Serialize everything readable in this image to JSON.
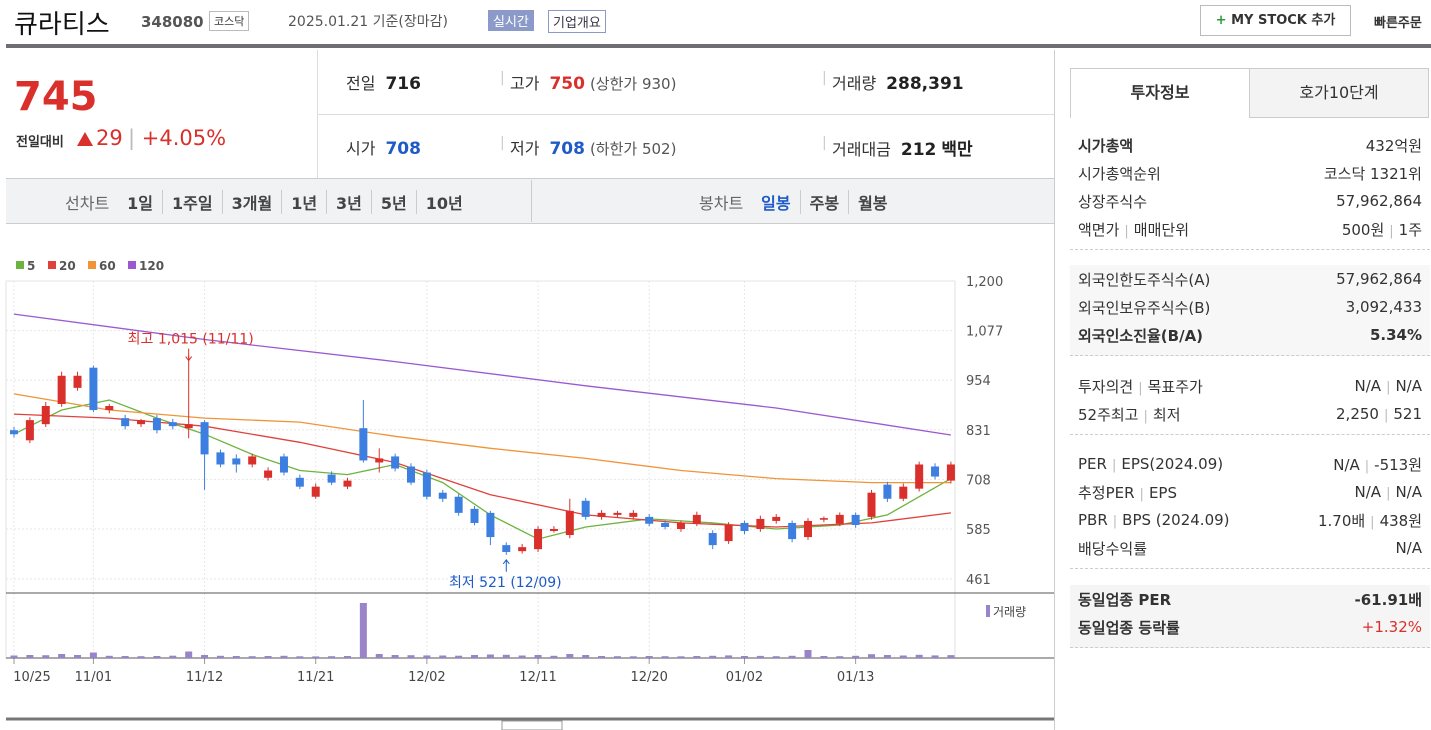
{
  "header": {
    "name": "큐라티스",
    "code": "348080",
    "market": "코스닥",
    "date_note": "2025.01.21 기준(장마감)",
    "realtime": "실시간",
    "company_info": "기업개요",
    "mystock": "MY STOCK 추가",
    "quick_order": "빠른주문"
  },
  "price": {
    "current": "745",
    "change_label": "전일대비",
    "change": "29",
    "change_pct": "+4.05%",
    "items": [
      {
        "label": "전일",
        "value": "716"
      },
      {
        "label": "고가",
        "value": "750",
        "extra": "(상한가 930)"
      },
      {
        "label": "거래량",
        "value": "288,391"
      },
      {
        "label": "시가",
        "value": "708"
      },
      {
        "label": "저가",
        "value": "708",
        "extra": "(하한가 502)"
      },
      {
        "label": "거래대금",
        "value": "212",
        "extra": "백만"
      }
    ]
  },
  "periods": {
    "line_label": "선차트",
    "line": [
      "1일",
      "1주일",
      "3개월",
      "1년",
      "3년",
      "5년",
      "10년"
    ],
    "candle_label": "봉차트",
    "candle": [
      "일봉",
      "주봉",
      "월봉"
    ]
  },
  "chart": {
    "type": "candlestick",
    "ylim": [
      461,
      1200
    ],
    "yticks": [
      {
        "value": 1200,
        "label": "1,200"
      },
      {
        "value": 1077,
        "label": "1,077"
      },
      954,
      831,
      708,
      585,
      461
    ],
    "xticks": [
      {
        "value": 0,
        "label": "10/25"
      },
      {
        "value": 5,
        "label": "11/01"
      },
      {
        "value": 12,
        "label": "11/12"
      },
      {
        "value": 19,
        "label": "11/21"
      },
      {
        "value": 26,
        "label": "12/02"
      },
      {
        "value": 33,
        "label": "12/11"
      },
      {
        "value": 40,
        "label": "12/20"
      },
      {
        "value": 46,
        "label": "01/02"
      },
      {
        "value": 53,
        "label": "01/13"
      }
    ],
    "up_color": "#d9302b",
    "down_color": "#3c7fe0",
    "open": [
      830,
      805,
      845,
      895,
      935,
      985,
      880,
      860,
      845,
      860,
      850,
      835,
      850,
      775,
      760,
      745,
      712,
      765,
      712,
      665,
      720,
      690,
      835,
      750,
      765,
      740,
      725,
      675,
      665,
      635,
      625,
      545,
      530,
      535,
      580,
      570,
      655,
      615,
      620,
      615,
      615,
      600,
      585,
      598,
      575,
      555,
      600,
      585,
      605,
      600,
      565,
      608,
      598,
      620,
      615,
      695,
      660,
      685,
      740,
      705
    ],
    "high": [
      838,
      862,
      900,
      975,
      975,
      990,
      895,
      868,
      858,
      868,
      858,
      1015,
      855,
      782,
      770,
      772,
      738,
      772,
      720,
      698,
      728,
      712,
      905,
      785,
      772,
      748,
      732,
      682,
      672,
      642,
      630,
      552,
      548,
      592,
      592,
      660,
      662,
      632,
      630,
      632,
      622,
      606,
      606,
      628,
      582,
      602,
      606,
      618,
      622,
      606,
      612,
      616,
      626,
      626,
      682,
      702,
      698,
      752,
      748,
      752
    ],
    "low": [
      812,
      798,
      838,
      888,
      928,
      875,
      872,
      832,
      838,
      822,
      832,
      810,
      682,
      738,
      725,
      738,
      705,
      718,
      684,
      660,
      694,
      684,
      750,
      725,
      728,
      694,
      658,
      652,
      618,
      594,
      545,
      521,
      524,
      528,
      576,
      562,
      608,
      608,
      614,
      608,
      592,
      584,
      578,
      592,
      535,
      548,
      572,
      578,
      598,
      552,
      558,
      602,
      592,
      588,
      608,
      652,
      654,
      678,
      708,
      698
    ],
    "close": [
      820,
      855,
      890,
      965,
      965,
      880,
      890,
      840,
      855,
      830,
      840,
      845,
      770,
      745,
      745,
      765,
      730,
      725,
      690,
      690,
      700,
      705,
      755,
      760,
      735,
      700,
      665,
      660,
      625,
      600,
      565,
      528,
      540,
      585,
      585,
      630,
      615,
      625,
      625,
      625,
      598,
      590,
      600,
      620,
      545,
      595,
      580,
      610,
      615,
      560,
      605,
      612,
      620,
      595,
      675,
      660,
      690,
      745,
      715,
      745
    ],
    "ma": [
      {
        "name": "5",
        "color": "#6db33f",
        "x": [
          0,
          3,
          6,
          9,
          12,
          15,
          18,
          21,
          24,
          27,
          30,
          33,
          36,
          40,
          44,
          48,
          52,
          55,
          59
        ],
        "values": [
          820,
          880,
          905,
          860,
          820,
          770,
          730,
          720,
          745,
          700,
          620,
          560,
          590,
          610,
          600,
          585,
          595,
          620,
          710
        ]
      },
      {
        "name": "20",
        "color": "#e0413a",
        "x": [
          0,
          6,
          12,
          18,
          24,
          30,
          36,
          42,
          48,
          54,
          59
        ],
        "values": [
          870,
          860,
          840,
          800,
          750,
          670,
          620,
          600,
          590,
          600,
          625
        ]
      },
      {
        "name": "60",
        "color": "#f09437",
        "x": [
          0,
          6,
          12,
          18,
          24,
          30,
          36,
          42,
          48,
          54,
          59
        ],
        "values": [
          920,
          880,
          860,
          850,
          815,
          785,
          760,
          730,
          710,
          700,
          700
        ]
      },
      {
        "name": "120",
        "color": "#9b59d0",
        "x": [
          0,
          12,
          24,
          36,
          48,
          59
        ],
        "values": [
          1118,
          1055,
          1000,
          940,
          885,
          818
        ]
      }
    ],
    "high_note": "최고 1,015 (11/11)",
    "low_note": "최저 521 (12/09)",
    "volume_name": "거래량",
    "volume_color": "#9a84c9",
    "vlim": [
      0,
      6000000
    ],
    "volume": [
      250000,
      300000,
      280000,
      400000,
      300000,
      550000,
      220000,
      200000,
      180000,
      200000,
      230000,
      650000,
      300000,
      220000,
      200000,
      180000,
      200000,
      220000,
      170000,
      160000,
      180000,
      200000,
      5500000,
      400000,
      300000,
      280000,
      260000,
      250000,
      230000,
      300000,
      350000,
      320000,
      250000,
      300000,
      220000,
      400000,
      300000,
      200000,
      180000,
      170000,
      200000,
      180000,
      170000,
      200000,
      220000,
      260000,
      200000,
      210000,
      180000,
      220000,
      800000,
      200000,
      180000,
      220000,
      380000,
      300000,
      250000,
      320000,
      260000,
      288391
    ]
  },
  "info": {
    "tabs": [
      "투자정보",
      "호가10단계"
    ],
    "sections": [
      [
        {
          "labels": [
            "시가총액"
          ],
          "values": [
            "432억원"
          ]
        },
        {
          "labels": [
            "시가총액순위"
          ],
          "values": [
            "코스닥 1321위"
          ]
        },
        {
          "labels": [
            "상장주식수"
          ],
          "values": [
            "57,962,864"
          ]
        },
        {
          "labels": [
            "액면가",
            "매매단위"
          ],
          "values": [
            "500원",
            "1주"
          ]
        }
      ],
      [
        {
          "labels": [
            "외국인한도주식수(A)"
          ],
          "values": [
            "57,962,864"
          ]
        },
        {
          "labels": [
            "외국인보유주식수(B)"
          ],
          "values": [
            "3,092,433"
          ]
        },
        {
          "labels": [
            "외국인소진율(B/A)"
          ],
          "values": [
            "5.34%"
          ]
        }
      ],
      [
        {
          "labels": [
            "투자의견",
            "목표주가"
          ],
          "values": [
            "N/A",
            "N/A"
          ]
        },
        {
          "labels": [
            "52주최고",
            "최저"
          ],
          "values": [
            "2,250",
            "521"
          ]
        }
      ],
      [
        {
          "labels": [
            "PER",
            "EPS(2024.09)"
          ],
          "values": [
            "N/A",
            "-513원"
          ]
        },
        {
          "labels": [
            "추정PER",
            "EPS"
          ],
          "values": [
            "N/A",
            "N/A"
          ]
        },
        {
          "labels": [
            "PBR",
            "BPS (2024.09)"
          ],
          "values": [
            "1.70배",
            "438원"
          ]
        },
        {
          "labels": [
            "배당수익률"
          ],
          "values": [
            "N/A"
          ]
        }
      ],
      [
        {
          "labels": [
            "동일업종 PER"
          ],
          "values": [
            "-61.91배"
          ]
        },
        {
          "labels": [
            "동일업종 등락률"
          ],
          "values": [
            "+1.32%"
          ]
        }
      ]
    ]
  }
}
